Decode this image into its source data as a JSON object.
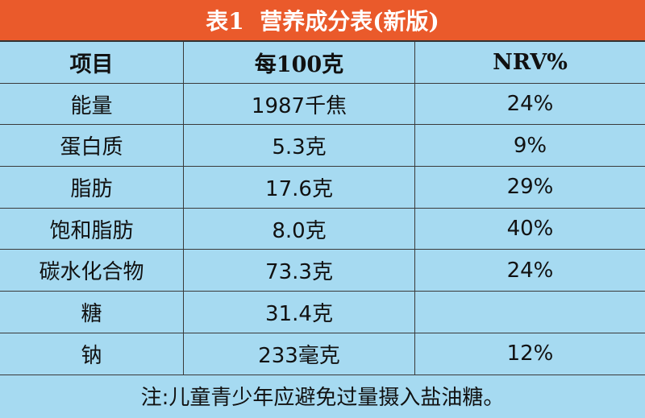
{
  "title": "表1  营养成分表(新版)",
  "table": {
    "header": [
      "项目",
      "每100克",
      "NRV%"
    ],
    "rows": [
      [
        "能量",
        "1987千焦",
        "24%"
      ],
      [
        "蛋白质",
        "5.3克",
        "9%"
      ],
      [
        "脂肪",
        "17.6克",
        "29%"
      ],
      [
        "饱和脂肪",
        "8.0克",
        "40%"
      ],
      [
        "碳水化合物",
        "73.3克",
        "24%"
      ],
      [
        "糖",
        "31.4克",
        null
      ],
      [
        "钠",
        "233毫克",
        "12%"
      ]
    ]
  },
  "note": "注:儿童青少年应避免过量摄入盐油糖。"
}
